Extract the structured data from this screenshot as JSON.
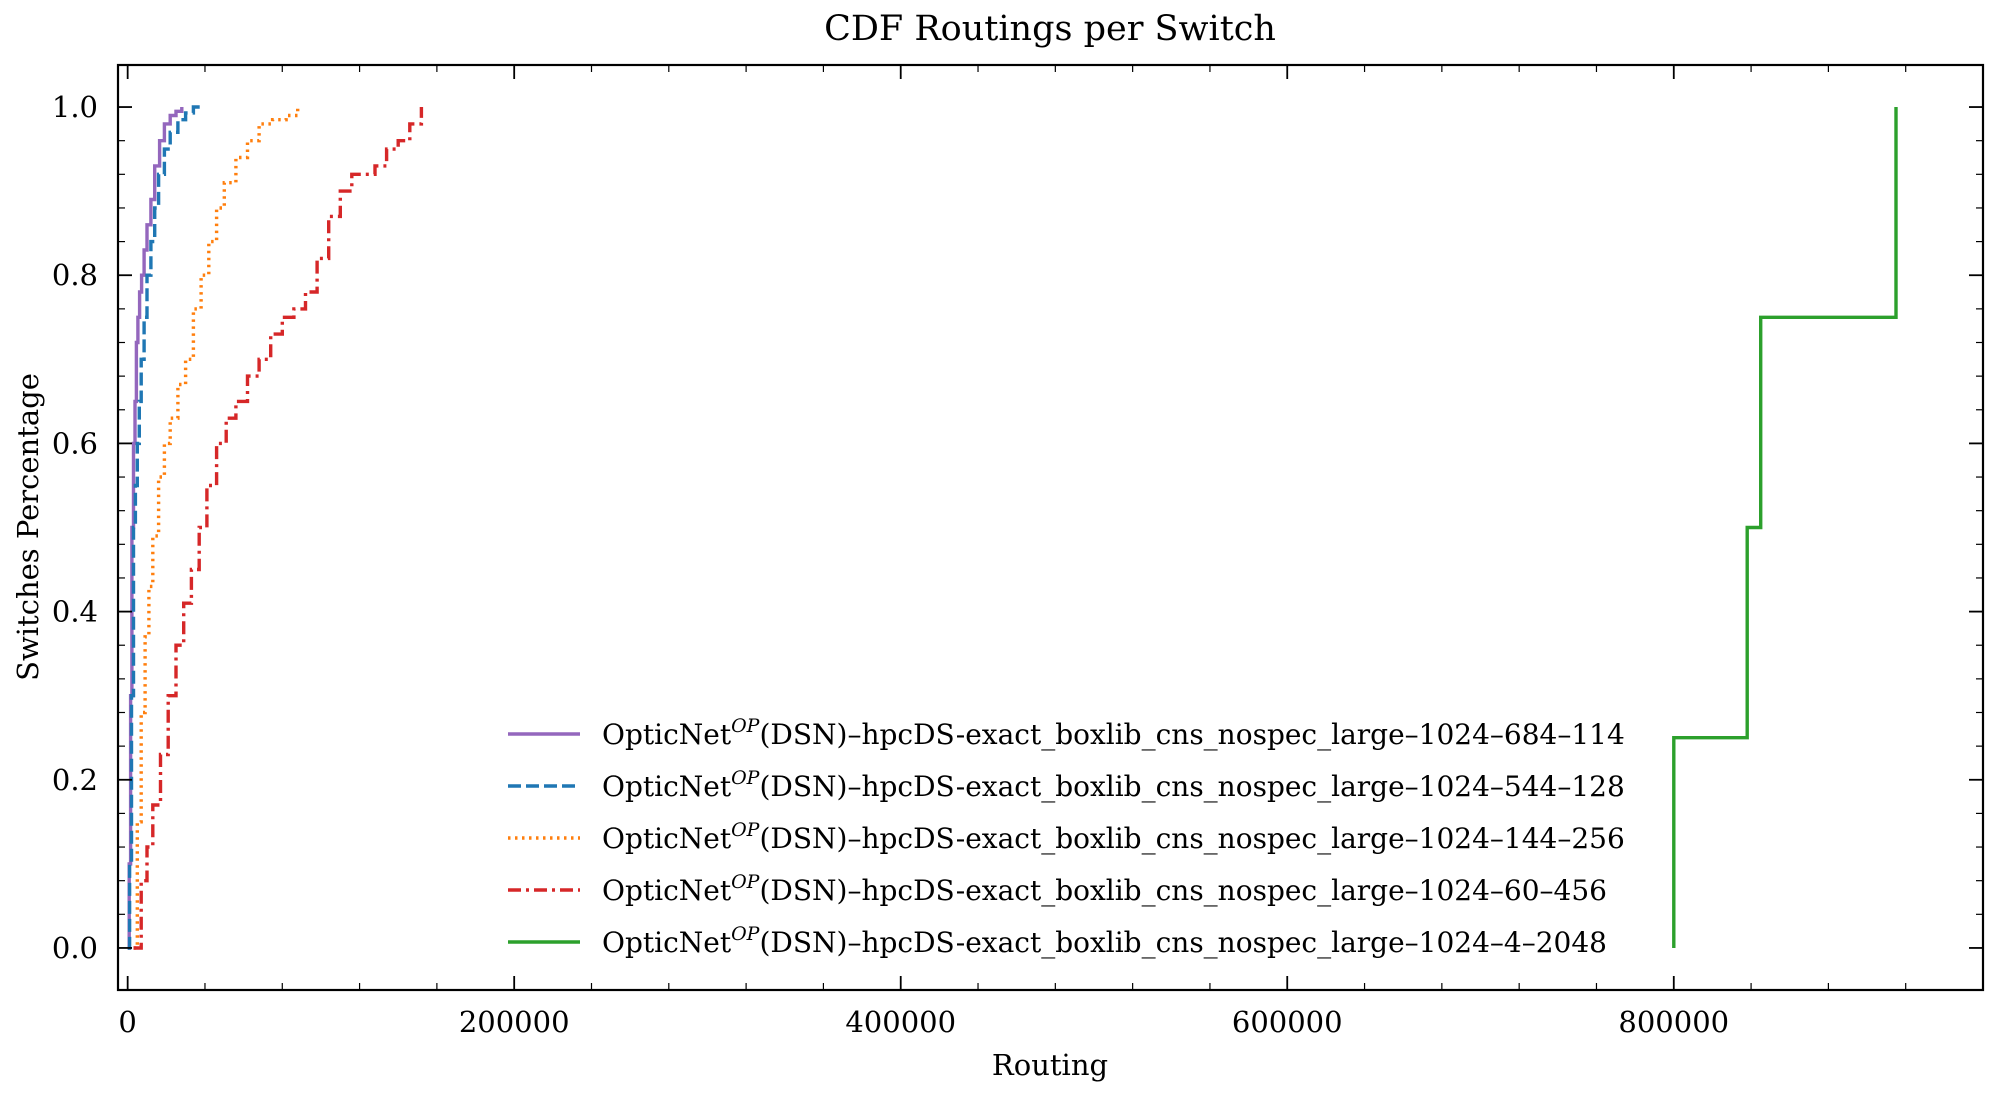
{
  "chart_data": {
    "type": "line",
    "title": "CDF Routings per Switch",
    "xlabel": "Routing",
    "ylabel": "Switches Percentage",
    "xlim": [
      -5000,
      960000
    ],
    "ylim": [
      -0.05,
      1.05
    ],
    "xticks": [
      0,
      200000,
      400000,
      600000,
      800000
    ],
    "xtick_labels": [
      "0",
      "200000",
      "400000",
      "600000",
      "800000"
    ],
    "yticks": [
      0.0,
      0.2,
      0.4,
      0.6,
      0.8,
      1.0
    ],
    "ytick_labels": [
      "0.0",
      "0.2",
      "0.4",
      "0.6",
      "0.8",
      "1.0"
    ],
    "grid": false,
    "legend_position": "lower-center",
    "series": [
      {
        "name": "OpticNet^OP(DSN)–hpcDS-exact_boxlib_cns_nospec_large–1024–684–114",
        "label_parts": [
          "OpticNet",
          "OP",
          "(DSN)–hpcDS-exact_boxlib_cns_nospec_large–1024–684–114"
        ],
        "color": "#9467bd",
        "dash": "solid",
        "x": [
          0,
          800,
          1500,
          2200,
          3000,
          3800,
          4500,
          5300,
          6200,
          7200,
          8500,
          10000,
          12000,
          14000,
          16500,
          19000,
          22000,
          25000,
          28000
        ],
        "y": [
          0.0,
          0.1,
          0.3,
          0.5,
          0.6,
          0.65,
          0.72,
          0.75,
          0.78,
          0.8,
          0.83,
          0.86,
          0.89,
          0.93,
          0.96,
          0.98,
          0.99,
          0.995,
          1.0
        ]
      },
      {
        "name": "OpticNet^OP(DSN)–hpcDS-exact_boxlib_cns_nospec_large–1024–544–128",
        "label_parts": [
          "OpticNet",
          "OP",
          "(DSN)–hpcDS-exact_boxlib_cns_nospec_large–1024–544–128"
        ],
        "color": "#1f77b4",
        "dash": "dashed",
        "x": [
          0,
          1000,
          2000,
          3000,
          4000,
          5000,
          6000,
          7000,
          8500,
          10000,
          12000,
          14000,
          16000,
          19000,
          22000,
          26000,
          30000,
          34000,
          38000
        ],
        "y": [
          0.0,
          0.1,
          0.3,
          0.5,
          0.55,
          0.6,
          0.65,
          0.7,
          0.75,
          0.8,
          0.84,
          0.88,
          0.92,
          0.95,
          0.97,
          0.985,
          0.993,
          1.0,
          1.0
        ]
      },
      {
        "name": "OpticNet^OP(DSN)–hpcDS-exact_boxlib_cns_nospec_large–1024–144–256",
        "label_parts": [
          "OpticNet",
          "OP",
          "(DSN)–hpcDS-exact_boxlib_cns_nospec_large–1024–144–256"
        ],
        "color": "#ff7f0e",
        "dash": "dotted",
        "x": [
          3000,
          5000,
          7000,
          9000,
          11000,
          13000,
          16000,
          19000,
          22000,
          26000,
          30000,
          34000,
          38000,
          42000,
          46000,
          50000,
          56000,
          62000,
          68000,
          75000,
          82000,
          88000
        ],
        "y": [
          0.0,
          0.15,
          0.28,
          0.37,
          0.43,
          0.49,
          0.56,
          0.6,
          0.63,
          0.67,
          0.7,
          0.76,
          0.8,
          0.84,
          0.88,
          0.91,
          0.94,
          0.96,
          0.98,
          0.985,
          0.99,
          1.0
        ]
      },
      {
        "name": "OpticNet^OP(DSN)–hpcDS-exact_boxlib_cns_nospec_large–1024–60–456",
        "label_parts": [
          "OpticNet",
          "OP",
          "(DSN)–hpcDS-exact_boxlib_cns_nospec_large–1024–60–456"
        ],
        "color": "#d62728",
        "dash": "dashdot",
        "x": [
          3000,
          7000,
          10000,
          13000,
          17000,
          21000,
          25000,
          29000,
          33000,
          37000,
          41000,
          46000,
          51000,
          56000,
          62000,
          68000,
          74000,
          80000,
          86000,
          92000,
          98000,
          104000,
          110000,
          116000,
          122000,
          128000,
          134000,
          140000,
          146000,
          152000
        ],
        "y": [
          0.0,
          0.08,
          0.12,
          0.17,
          0.23,
          0.3,
          0.36,
          0.41,
          0.45,
          0.5,
          0.55,
          0.6,
          0.63,
          0.65,
          0.68,
          0.7,
          0.73,
          0.75,
          0.76,
          0.78,
          0.82,
          0.87,
          0.9,
          0.92,
          0.92,
          0.93,
          0.95,
          0.96,
          0.98,
          1.0
        ]
      },
      {
        "name": "OpticNet^OP(DSN)–hpcDS-exact_boxlib_cns_nospec_large–1024–4–2048",
        "label_parts": [
          "OpticNet",
          "OP",
          "(DSN)–hpcDS-exact_boxlib_cns_nospec_large–1024–4–2048"
        ],
        "color": "#2ca02c",
        "dash": "solid",
        "x": [
          800000,
          838000,
          845000,
          915000
        ],
        "y": [
          0.25,
          0.5,
          0.75,
          1.0
        ]
      }
    ]
  }
}
